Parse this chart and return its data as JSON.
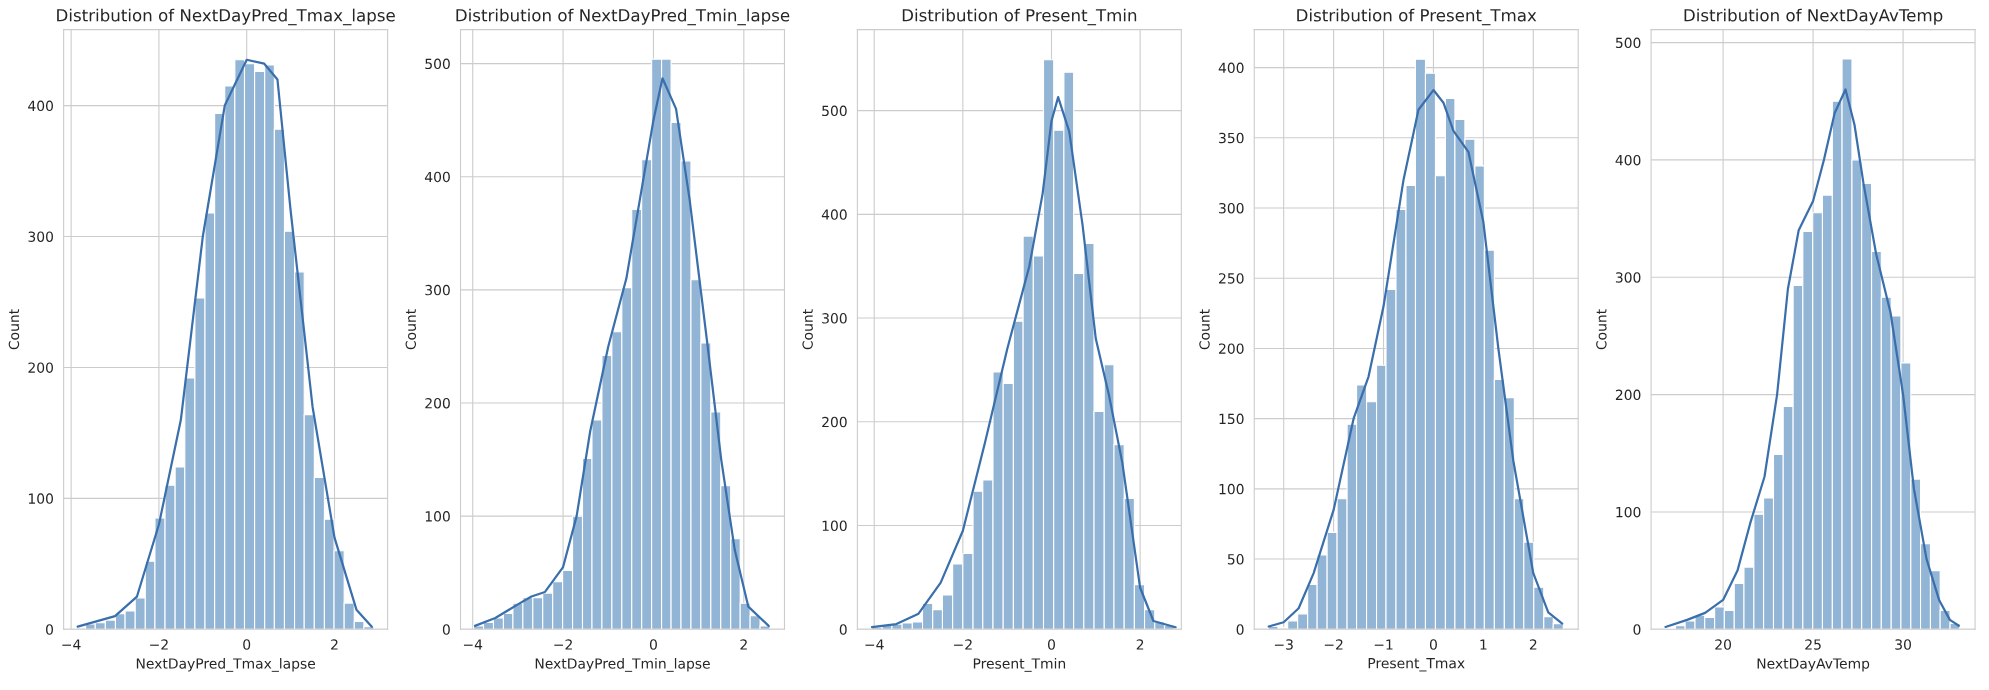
{
  "chart_data": [
    {
      "type": "histogram",
      "title": "Distribution of NextDayPred_Tmax_lapse",
      "xlabel": "NextDayPred_Tmax_lapse",
      "ylabel": "Count",
      "grid": true,
      "xlim": [
        -4.17,
        3.21
      ],
      "ylim": [
        0,
        458
      ],
      "xticks": [
        {
          "value": -4,
          "label": "−4"
        },
        {
          "value": -2,
          "label": "−2"
        },
        0,
        2
      ],
      "yticks": [
        0,
        100,
        200,
        300,
        400
      ],
      "series": [
        {
          "type": "histogram",
          "color": "#92b4d5",
          "bins": [
            -3.9,
            -3.67,
            -3.45,
            -3.22,
            -2.99,
            -2.77,
            -2.54,
            -2.31,
            -2.09,
            -1.86,
            -1.63,
            -1.41,
            -1.18,
            -0.95,
            -0.73,
            -0.5,
            -0.27,
            -0.05,
            0.18,
            0.41,
            0.63,
            0.86,
            1.09,
            1.31,
            1.54,
            1.77,
            1.99,
            2.22,
            2.45,
            2.67,
            2.9
          ],
          "values": [
            1,
            4,
            5,
            7,
            12,
            14,
            24,
            52,
            85,
            110,
            124,
            192,
            253,
            318,
            394,
            415,
            435,
            432,
            426,
            431,
            382,
            304,
            273,
            164,
            116,
            84,
            60,
            20,
            6,
            2
          ]
        },
        {
          "type": "line",
          "color": "#3a6fab",
          "x": [
            -3.85,
            -3,
            -2.5,
            -2,
            -1.5,
            -1,
            -0.5,
            0,
            0.4,
            0.7,
            1,
            1.5,
            2,
            2.5,
            2.85
          ],
          "values": [
            2,
            10,
            25,
            80,
            160,
            300,
            400,
            435,
            432,
            420,
            320,
            170,
            70,
            15,
            2
          ]
        }
      ]
    },
    {
      "type": "histogram",
      "title": "Distribution of NextDayPred_Tmin_lapse",
      "xlabel": "NextDayPred_Tmin_lapse",
      "ylabel": "Count",
      "grid": true,
      "xlim": [
        -4.27,
        2.9
      ],
      "ylim": [
        0,
        530
      ],
      "xticks": [
        {
          "value": -4,
          "label": "−4"
        },
        {
          "value": -2,
          "label": "−2"
        },
        0,
        2
      ],
      "yticks": [
        0,
        100,
        200,
        300,
        400,
        500
      ],
      "series": [
        {
          "type": "histogram",
          "color": "#92b4d5",
          "bins": [
            -3.98,
            -3.76,
            -3.54,
            -3.32,
            -3.11,
            -2.89,
            -2.67,
            -2.45,
            -2.23,
            -2.01,
            -1.79,
            -1.57,
            -1.36,
            -1.14,
            -0.92,
            -0.7,
            -0.48,
            -0.26,
            -0.04,
            0.18,
            0.39,
            0.61,
            0.83,
            1.05,
            1.27,
            1.49,
            1.71,
            1.92,
            2.14,
            2.36,
            2.58
          ],
          "values": [
            3,
            6,
            10,
            14,
            23,
            28,
            28,
            32,
            42,
            52,
            100,
            151,
            185,
            242,
            263,
            302,
            371,
            415,
            504,
            504,
            448,
            414,
            309,
            253,
            192,
            127,
            80,
            23,
            12,
            3
          ]
        },
        {
          "type": "line",
          "color": "#3a6fab",
          "x": [
            -3.95,
            -3.5,
            -3,
            -2.7,
            -2.4,
            -2,
            -1.7,
            -1.4,
            -1,
            -0.6,
            -0.3,
            0,
            0.2,
            0.5,
            0.8,
            1.2,
            1.5,
            1.8,
            2.1,
            2.55
          ],
          "values": [
            3,
            10,
            22,
            29,
            33,
            55,
            100,
            175,
            250,
            310,
            380,
            450,
            487,
            460,
            380,
            250,
            150,
            70,
            20,
            3
          ]
        }
      ]
    },
    {
      "type": "histogram",
      "title": "Distribution of Present_Tmin",
      "xlabel": "Present_Tmin",
      "ylabel": "Count",
      "grid": true,
      "xlim": [
        -4.38,
        2.93
      ],
      "ylim": [
        0,
        578
      ],
      "xticks": [
        {
          "value": -4,
          "label": "−4"
        },
        {
          "value": -2,
          "label": "−2"
        },
        0,
        2
      ],
      "yticks": [
        0,
        100,
        200,
        300,
        400,
        500
      ],
      "series": [
        {
          "type": "histogram",
          "color": "#92b4d5",
          "bins": [
            -4.05,
            -3.82,
            -3.6,
            -3.37,
            -3.14,
            -2.91,
            -2.68,
            -2.46,
            -2.23,
            -2.0,
            -1.77,
            -1.55,
            -1.32,
            -1.09,
            -0.86,
            -0.64,
            -0.41,
            -0.18,
            0.05,
            0.28,
            0.5,
            0.73,
            0.96,
            1.19,
            1.41,
            1.64,
            1.87,
            2.1,
            2.33,
            2.55,
            2.78
          ],
          "values": [
            2,
            4,
            5,
            6,
            7,
            25,
            19,
            33,
            63,
            73,
            133,
            144,
            248,
            237,
            297,
            379,
            360,
            549,
            481,
            537,
            343,
            372,
            210,
            255,
            178,
            126,
            43,
            19,
            7,
            4
          ]
        },
        {
          "type": "line",
          "color": "#3a6fab",
          "x": [
            -4.05,
            -3.5,
            -3,
            -2.5,
            -2,
            -1.5,
            -1,
            -0.5,
            -0.2,
            0,
            0.15,
            0.4,
            0.7,
            1,
            1.3,
            1.6,
            2,
            2.3,
            2.8
          ],
          "values": [
            2,
            5,
            15,
            45,
            95,
            180,
            270,
            350,
            420,
            490,
            513,
            480,
            390,
            280,
            225,
            160,
            40,
            8,
            2
          ]
        }
      ]
    },
    {
      "type": "histogram",
      "title": "Distribution of Present_Tmax",
      "xlabel": "Present_Tmax",
      "ylabel": "Count",
      "grid": true,
      "xlim": [
        -3.59,
        2.9
      ],
      "ylim": [
        0,
        427
      ],
      "xticks": [
        {
          "value": -3,
          "label": "−3"
        },
        {
          "value": -2,
          "label": "−2"
        },
        {
          "value": -1,
          "label": "−1"
        },
        0,
        1,
        2
      ],
      "yticks": [
        0,
        50,
        100,
        150,
        200,
        250,
        300,
        350,
        400
      ],
      "series": [
        {
          "type": "histogram",
          "color": "#92b4d5",
          "bins": [
            -3.31,
            -3.11,
            -2.92,
            -2.72,
            -2.52,
            -2.33,
            -2.13,
            -1.93,
            -1.73,
            -1.54,
            -1.34,
            -1.14,
            -0.95,
            -0.75,
            -0.55,
            -0.36,
            -0.16,
            0.04,
            0.24,
            0.43,
            0.63,
            0.83,
            1.02,
            1.22,
            1.42,
            1.62,
            1.81,
            2.01,
            2.21,
            2.4,
            2.6
          ],
          "values": [
            2,
            1,
            6,
            11,
            32,
            53,
            69,
            93,
            146,
            174,
            162,
            188,
            242,
            299,
            316,
            406,
            396,
            323,
            378,
            363,
            349,
            330,
            270,
            178,
            165,
            93,
            62,
            30,
            9,
            4
          ]
        },
        {
          "type": "line",
          "color": "#3a6fab",
          "x": [
            -3.3,
            -3,
            -2.7,
            -2.4,
            -2,
            -1.6,
            -1.3,
            -1,
            -0.6,
            -0.3,
            0,
            0.2,
            0.4,
            0.7,
            1,
            1.3,
            1.6,
            2,
            2.3,
            2.58
          ],
          "values": [
            2,
            5,
            15,
            40,
            85,
            150,
            180,
            230,
            320,
            370,
            384,
            375,
            355,
            340,
            290,
            200,
            120,
            40,
            12,
            4
          ]
        }
      ]
    },
    {
      "type": "histogram",
      "title": "Distribution of NextDayAvTemp",
      "xlabel": "NextDayAvTemp",
      "ylabel": "Count",
      "grid": true,
      "xlim": [
        16.0,
        34.0
      ],
      "ylim": [
        0,
        511
      ],
      "xticks": [
        20,
        25,
        30
      ],
      "yticks": [
        0,
        100,
        200,
        300,
        400,
        500
      ],
      "series": [
        {
          "type": "histogram",
          "color": "#92b4d5",
          "bins": [
            16.8,
            17.35,
            17.89,
            18.44,
            18.98,
            19.53,
            20.07,
            20.62,
            21.16,
            21.71,
            22.25,
            22.8,
            23.34,
            23.89,
            24.43,
            24.98,
            25.52,
            26.07,
            26.61,
            27.16,
            27.7,
            28.25,
            28.79,
            29.34,
            29.88,
            30.43,
            30.97,
            31.52,
            32.06,
            32.61,
            33.15
          ],
          "values": [
            1,
            3,
            7,
            12,
            10,
            19,
            16,
            39,
            53,
            98,
            112,
            149,
            190,
            293,
            339,
            355,
            370,
            450,
            486,
            400,
            380,
            322,
            283,
            267,
            227,
            128,
            73,
            50,
            16,
            5
          ]
        },
        {
          "type": "line",
          "color": "#3a6fab",
          "x": [
            16.8,
            18,
            19,
            20,
            20.8,
            21.5,
            22.3,
            23,
            23.6,
            24.2,
            25,
            25.6,
            26.2,
            26.8,
            27.3,
            27.8,
            28.5,
            29.3,
            30,
            30.6,
            31.3,
            32,
            32.6,
            33.1
          ],
          "values": [
            2,
            8,
            14,
            25,
            50,
            90,
            130,
            200,
            290,
            340,
            365,
            400,
            440,
            460,
            430,
            380,
            320,
            270,
            200,
            120,
            60,
            25,
            8,
            3
          ]
        }
      ]
    }
  ]
}
